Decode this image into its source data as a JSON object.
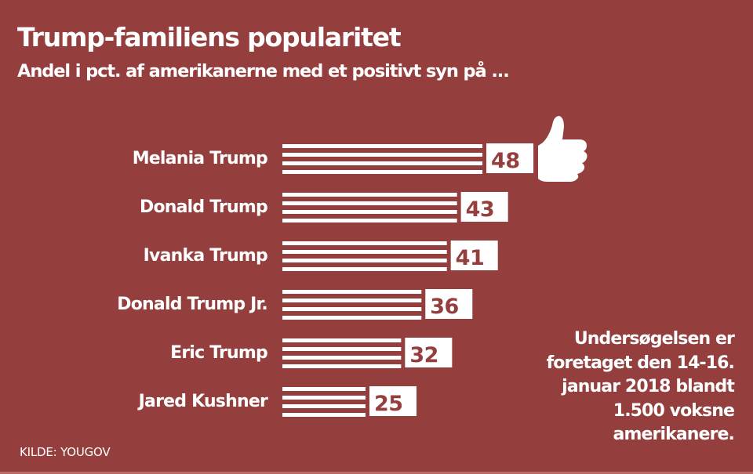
{
  "header": {
    "title": "Trump-familiens popularitet",
    "subtitle": "Andel i pct. af amerikanerne med et positivt syn på ..."
  },
  "colors": {
    "background": "#943f3e",
    "bar": "#ffffff",
    "value_text": "#943f3e"
  },
  "icon": "thumbs-up-icon",
  "note": [
    "Undersøgelsen er",
    "foretaget den 14-16.",
    "januar 2018 blandt",
    "1.500 voksne",
    "amerikanere."
  ],
  "source": "KILDE: YOUGOV",
  "chart_data": {
    "type": "bar",
    "orientation": "horizontal",
    "title": "Trump-familiens popularitet",
    "subtitle": "Andel i pct. af amerikanerne med et positivt syn på ...",
    "xlabel": "",
    "ylabel": "",
    "unit": "pct.",
    "categories": [
      "Melania Trump",
      "Donald Trump",
      "Ivanka Trump",
      "Donald Trump Jr.",
      "Eric Trump",
      "Jared Kushner"
    ],
    "values": [
      48,
      43,
      41,
      36,
      32,
      25
    ],
    "value_labels": [
      "48",
      "43",
      "41",
      "36",
      "32",
      "25"
    ],
    "grid": false,
    "legend": "none",
    "annotation": "Undersøgelsen er foretaget den 14-16. januar 2018 blandt 1.500 voksne amerikanere.",
    "source": "KILDE: YOUGOV"
  }
}
